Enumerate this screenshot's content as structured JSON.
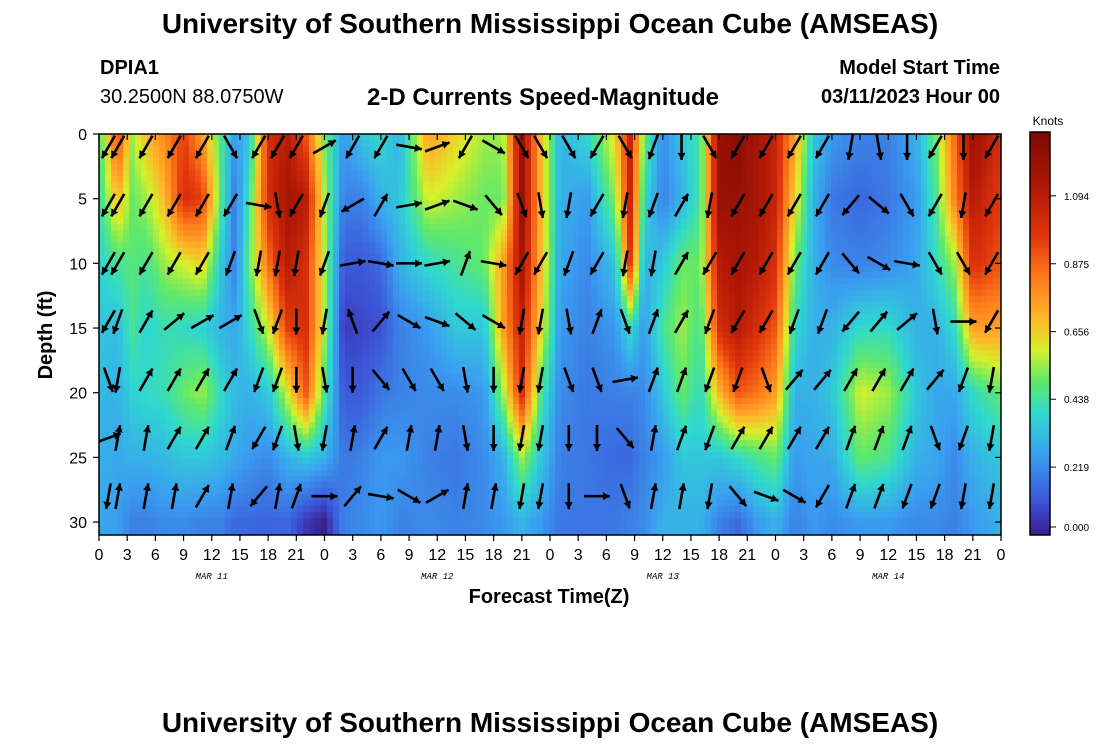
{
  "header": {
    "title": "University of Southern Mississippi Ocean Cube (AMSEAS)",
    "station_id": "DPIA1",
    "station_coords": "30.2500N  88.0750W",
    "chart_title": "2-D Currents Speed-Magnitude",
    "model_start_label": "Model Start Time",
    "model_start_value": "03/11/2023 Hour 00"
  },
  "footer": {
    "title": "University of Southern Mississippi Ocean Cube (AMSEAS)"
  },
  "chart_data": {
    "type": "heatmap",
    "xlabel": "Forecast Time(Z)",
    "ylabel": "Depth (ft)",
    "x_tick_labels": [
      "0",
      "3",
      "6",
      "9",
      "12",
      "15",
      "18",
      "21",
      "0",
      "3",
      "6",
      "9",
      "12",
      "15",
      "18",
      "21",
      "0",
      "3",
      "6",
      "9",
      "12",
      "15",
      "18",
      "21",
      "0",
      "3",
      "6",
      "9",
      "12",
      "15",
      "18",
      "21",
      "0"
    ],
    "date_labels": [
      {
        "label": "MAR 11",
        "hour": 12
      },
      {
        "label": "MAR 12",
        "hour": 36
      },
      {
        "label": "MAR 13",
        "hour": 60
      },
      {
        "label": "MAR 14",
        "hour": 84
      }
    ],
    "x_range_hours": [
      0,
      96
    ],
    "y_ticks": [
      0,
      5,
      10,
      15,
      20,
      25,
      30
    ],
    "y_range": [
      0,
      31
    ],
    "colorbar": {
      "unit": "Knots",
      "ticks": [
        "1.094",
        "0.875",
        "0.656",
        "0.438",
        "0.219",
        "0.000"
      ],
      "range": [
        0,
        1.3
      ]
    },
    "speed_columns": [
      {
        "hour": 0,
        "speeds": [
          0.45,
          0.42,
          0.38,
          0.35,
          0.32,
          0.3,
          0.28
        ]
      },
      {
        "hour": 2,
        "speeds": [
          0.95,
          0.7,
          0.45,
          0.33,
          0.3,
          0.28,
          0.26
        ]
      },
      {
        "hour": 3.5,
        "speeds": [
          0.55,
          0.5,
          0.48,
          0.45,
          0.38,
          0.3,
          0.2
        ]
      },
      {
        "hour": 5,
        "speeds": [
          0.7,
          0.55,
          0.45,
          0.38,
          0.4,
          0.3,
          0.2
        ]
      },
      {
        "hour": 7,
        "speeds": [
          0.8,
          0.7,
          0.55,
          0.42,
          0.42,
          0.32,
          0.22
        ]
      },
      {
        "hour": 9,
        "speeds": [
          0.95,
          1.0,
          0.6,
          0.4,
          0.5,
          0.35,
          0.22
        ]
      },
      {
        "hour": 11,
        "speeds": [
          0.75,
          0.95,
          0.65,
          0.38,
          0.55,
          0.35,
          0.2
        ]
      },
      {
        "hour": 13,
        "speeds": [
          0.45,
          0.45,
          0.35,
          0.3,
          0.4,
          0.32,
          0.2
        ]
      },
      {
        "hour": 14.5,
        "speeds": [
          0.25,
          0.18,
          0.2,
          0.28,
          0.32,
          0.28,
          0.15
        ]
      },
      {
        "hour": 16,
        "speeds": [
          0.35,
          0.45,
          0.5,
          0.4,
          0.3,
          0.25,
          0.15
        ]
      },
      {
        "hour": 18,
        "speeds": [
          1.0,
          1.0,
          0.85,
          0.6,
          0.35,
          0.22,
          0.14
        ]
      },
      {
        "hour": 20,
        "speeds": [
          1.1,
          1.15,
          1.1,
          0.95,
          0.6,
          0.3,
          0.15
        ]
      },
      {
        "hour": 22,
        "speeds": [
          0.9,
          1.1,
          1.0,
          1.0,
          0.9,
          0.35,
          0.05
        ]
      },
      {
        "hour": 24,
        "speeds": [
          0.5,
          0.55,
          0.55,
          0.55,
          0.45,
          0.3,
          0.0
        ]
      },
      {
        "hour": 26,
        "speeds": [
          0.25,
          0.2,
          0.12,
          0.06,
          0.12,
          0.18,
          0.2
        ]
      },
      {
        "hour": 28,
        "speeds": [
          0.35,
          0.2,
          0.12,
          0.08,
          0.12,
          0.2,
          0.22
        ]
      },
      {
        "hour": 30,
        "speeds": [
          0.4,
          0.3,
          0.15,
          0.1,
          0.18,
          0.25,
          0.25
        ]
      },
      {
        "hour": 32,
        "speeds": [
          0.3,
          0.35,
          0.3,
          0.2,
          0.2,
          0.25,
          0.2
        ]
      },
      {
        "hour": 35,
        "speeds": [
          0.75,
          0.6,
          0.4,
          0.25,
          0.22,
          0.2,
          0.22
        ]
      },
      {
        "hour": 38,
        "speeds": [
          0.65,
          0.55,
          0.45,
          0.35,
          0.22,
          0.18,
          0.2
        ]
      },
      {
        "hour": 41,
        "speeds": [
          0.55,
          0.5,
          0.5,
          0.35,
          0.25,
          0.22,
          0.22
        ]
      },
      {
        "hour": 43,
        "speeds": [
          0.55,
          0.5,
          0.75,
          0.75,
          0.55,
          0.3,
          0.25
        ]
      },
      {
        "hour": 45,
        "speeds": [
          1.2,
          1.2,
          1.15,
          1.05,
          1.0,
          0.55,
          0.3
        ]
      },
      {
        "hour": 47,
        "speeds": [
          0.7,
          0.7,
          0.7,
          0.65,
          0.45,
          0.35,
          0.25
        ]
      },
      {
        "hour": 49,
        "speeds": [
          0.3,
          0.3,
          0.28,
          0.25,
          0.22,
          0.2,
          0.18
        ]
      },
      {
        "hour": 52,
        "speeds": [
          0.4,
          0.25,
          0.22,
          0.2,
          0.18,
          0.18,
          0.18
        ]
      },
      {
        "hour": 55,
        "speeds": [
          0.65,
          0.55,
          0.35,
          0.25,
          0.2,
          0.15,
          0.18
        ]
      },
      {
        "hour": 56.5,
        "speeds": [
          1.05,
          1.05,
          0.95,
          0.4,
          0.2,
          0.15,
          0.2
        ]
      },
      {
        "hour": 58,
        "speeds": [
          0.5,
          0.4,
          0.3,
          0.25,
          0.22,
          0.2,
          0.22
        ]
      },
      {
        "hour": 60,
        "speeds": [
          0.22,
          0.2,
          0.35,
          0.45,
          0.35,
          0.25,
          0.3
        ]
      },
      {
        "hour": 62,
        "speeds": [
          0.35,
          0.3,
          0.5,
          0.55,
          0.5,
          0.35,
          0.3
        ]
      },
      {
        "hour": 64,
        "speeds": [
          0.45,
          0.45,
          0.5,
          0.45,
          0.4,
          0.35,
          0.3
        ]
      },
      {
        "hour": 66,
        "speeds": [
          1.2,
          1.2,
          1.1,
          1.0,
          0.7,
          0.35,
          0.2
        ]
      },
      {
        "hour": 68,
        "speeds": [
          1.25,
          1.2,
          1.15,
          1.1,
          0.9,
          0.4,
          0.15
        ]
      },
      {
        "hour": 70,
        "speeds": [
          1.15,
          1.15,
          1.1,
          1.0,
          0.85,
          0.45,
          0.25
        ]
      },
      {
        "hour": 72,
        "speeds": [
          1.05,
          1.05,
          1.0,
          0.9,
          0.75,
          0.5,
          0.3
        ]
      },
      {
        "hour": 74,
        "speeds": [
          0.75,
          0.65,
          0.5,
          0.4,
          0.3,
          0.25,
          0.2
        ]
      },
      {
        "hour": 76,
        "speeds": [
          0.35,
          0.3,
          0.3,
          0.3,
          0.3,
          0.28,
          0.25
        ]
      },
      {
        "hour": 78,
        "speeds": [
          0.25,
          0.18,
          0.22,
          0.3,
          0.35,
          0.28,
          0.22
        ]
      },
      {
        "hour": 81,
        "speeds": [
          0.2,
          0.15,
          0.2,
          0.4,
          0.6,
          0.5,
          0.25
        ]
      },
      {
        "hour": 84,
        "speeds": [
          0.2,
          0.18,
          0.22,
          0.4,
          0.55,
          0.45,
          0.25
        ]
      },
      {
        "hour": 87,
        "speeds": [
          0.3,
          0.25,
          0.28,
          0.3,
          0.35,
          0.3,
          0.22
        ]
      },
      {
        "hour": 89,
        "speeds": [
          0.5,
          0.45,
          0.4,
          0.3,
          0.28,
          0.28,
          0.22
        ]
      },
      {
        "hour": 91,
        "speeds": [
          0.85,
          0.8,
          0.55,
          0.4,
          0.28,
          0.22,
          0.2
        ]
      },
      {
        "hour": 93,
        "speeds": [
          1.2,
          1.1,
          1.0,
          0.75,
          0.4,
          0.3,
          0.25
        ]
      },
      {
        "hour": 96,
        "speeds": [
          1.0,
          0.95,
          0.9,
          0.75,
          0.5,
          0.35,
          0.3
        ]
      }
    ],
    "speed_depths": [
      0,
      5,
      10,
      15,
      20,
      25,
      30
    ],
    "vector_depths": [
      1,
      5.5,
      10,
      14.5,
      19,
      23.5,
      28
    ],
    "vector_columns": [
      {
        "hour": 1,
        "dirs": [
          210,
          210,
          210,
          210,
          160,
          70,
          190
        ]
      },
      {
        "hour": 2,
        "dirs": [
          210,
          210,
          210,
          200,
          190,
          10,
          10
        ]
      },
      {
        "hour": 5,
        "dirs": [
          210,
          210,
          210,
          30,
          30,
          10,
          10
        ]
      },
      {
        "hour": 8,
        "dirs": [
          210,
          210,
          210,
          50,
          30,
          30,
          10
        ]
      },
      {
        "hour": 11,
        "dirs": [
          210,
          210,
          210,
          60,
          30,
          30,
          30
        ]
      },
      {
        "hour": 14,
        "dirs": [
          150,
          210,
          200,
          60,
          30,
          20,
          10
        ]
      },
      {
        "hour": 17,
        "dirs": [
          210,
          100,
          190,
          160,
          200,
          210,
          220
        ]
      },
      {
        "hour": 19,
        "dirs": [
          210,
          170,
          190,
          200,
          200,
          200,
          10
        ]
      },
      {
        "hour": 21,
        "dirs": [
          210,
          210,
          190,
          180,
          180,
          170,
          20
        ]
      },
      {
        "hour": 24,
        "dirs": [
          60,
          200,
          200,
          190,
          170,
          190,
          90
        ]
      },
      {
        "hour": 27,
        "dirs": [
          210,
          240,
          80,
          340,
          180,
          10,
          40
        ]
      },
      {
        "hour": 30,
        "dirs": [
          210,
          30,
          100,
          40,
          140,
          30,
          100
        ]
      },
      {
        "hour": 33,
        "dirs": [
          100,
          80,
          90,
          120,
          150,
          10,
          120
        ]
      },
      {
        "hour": 36,
        "dirs": [
          70,
          70,
          80,
          110,
          150,
          10,
          60
        ]
      },
      {
        "hour": 39,
        "dirs": [
          210,
          110,
          20,
          130,
          170,
          170,
          10
        ]
      },
      {
        "hour": 42,
        "dirs": [
          120,
          140,
          100,
          120,
          180,
          180,
          10
        ]
      },
      {
        "hour": 45,
        "dirs": [
          150,
          160,
          210,
          190,
          190,
          190,
          190
        ]
      },
      {
        "hour": 47,
        "dirs": [
          150,
          170,
          210,
          190,
          190,
          190,
          190
        ]
      },
      {
        "hour": 50,
        "dirs": [
          150,
          190,
          200,
          170,
          160,
          180,
          180
        ]
      },
      {
        "hour": 53,
        "dirs": [
          210,
          210,
          210,
          20,
          160,
          180,
          90
        ]
      },
      {
        "hour": 56,
        "dirs": [
          150,
          190,
          190,
          160,
          80,
          140,
          160
        ]
      },
      {
        "hour": 59,
        "dirs": [
          200,
          200,
          190,
          20,
          20,
          10,
          10
        ]
      },
      {
        "hour": 62,
        "dirs": [
          180,
          30,
          30,
          30,
          20,
          20,
          10
        ]
      },
      {
        "hour": 65,
        "dirs": [
          150,
          190,
          210,
          200,
          200,
          200,
          190
        ]
      },
      {
        "hour": 68,
        "dirs": [
          210,
          210,
          210,
          210,
          200,
          30,
          140
        ]
      },
      {
        "hour": 71,
        "dirs": [
          210,
          210,
          210,
          210,
          160,
          30,
          110
        ]
      },
      {
        "hour": 74,
        "dirs": [
          210,
          210,
          210,
          200,
          40,
          30,
          120
        ]
      },
      {
        "hour": 77,
        "dirs": [
          210,
          210,
          210,
          200,
          40,
          30,
          210
        ]
      },
      {
        "hour": 80,
        "dirs": [
          190,
          220,
          140,
          220,
          30,
          20,
          20
        ]
      },
      {
        "hour": 83,
        "dirs": [
          170,
          130,
          120,
          40,
          30,
          20,
          20
        ]
      },
      {
        "hour": 86,
        "dirs": [
          180,
          150,
          100,
          50,
          30,
          20,
          200
        ]
      },
      {
        "hour": 89,
        "dirs": [
          210,
          210,
          150,
          170,
          40,
          160,
          200
        ]
      },
      {
        "hour": 92,
        "dirs": [
          180,
          190,
          150,
          90,
          200,
          200,
          190
        ]
      },
      {
        "hour": 95,
        "dirs": [
          210,
          210,
          210,
          210,
          190,
          190,
          190
        ]
      }
    ]
  }
}
